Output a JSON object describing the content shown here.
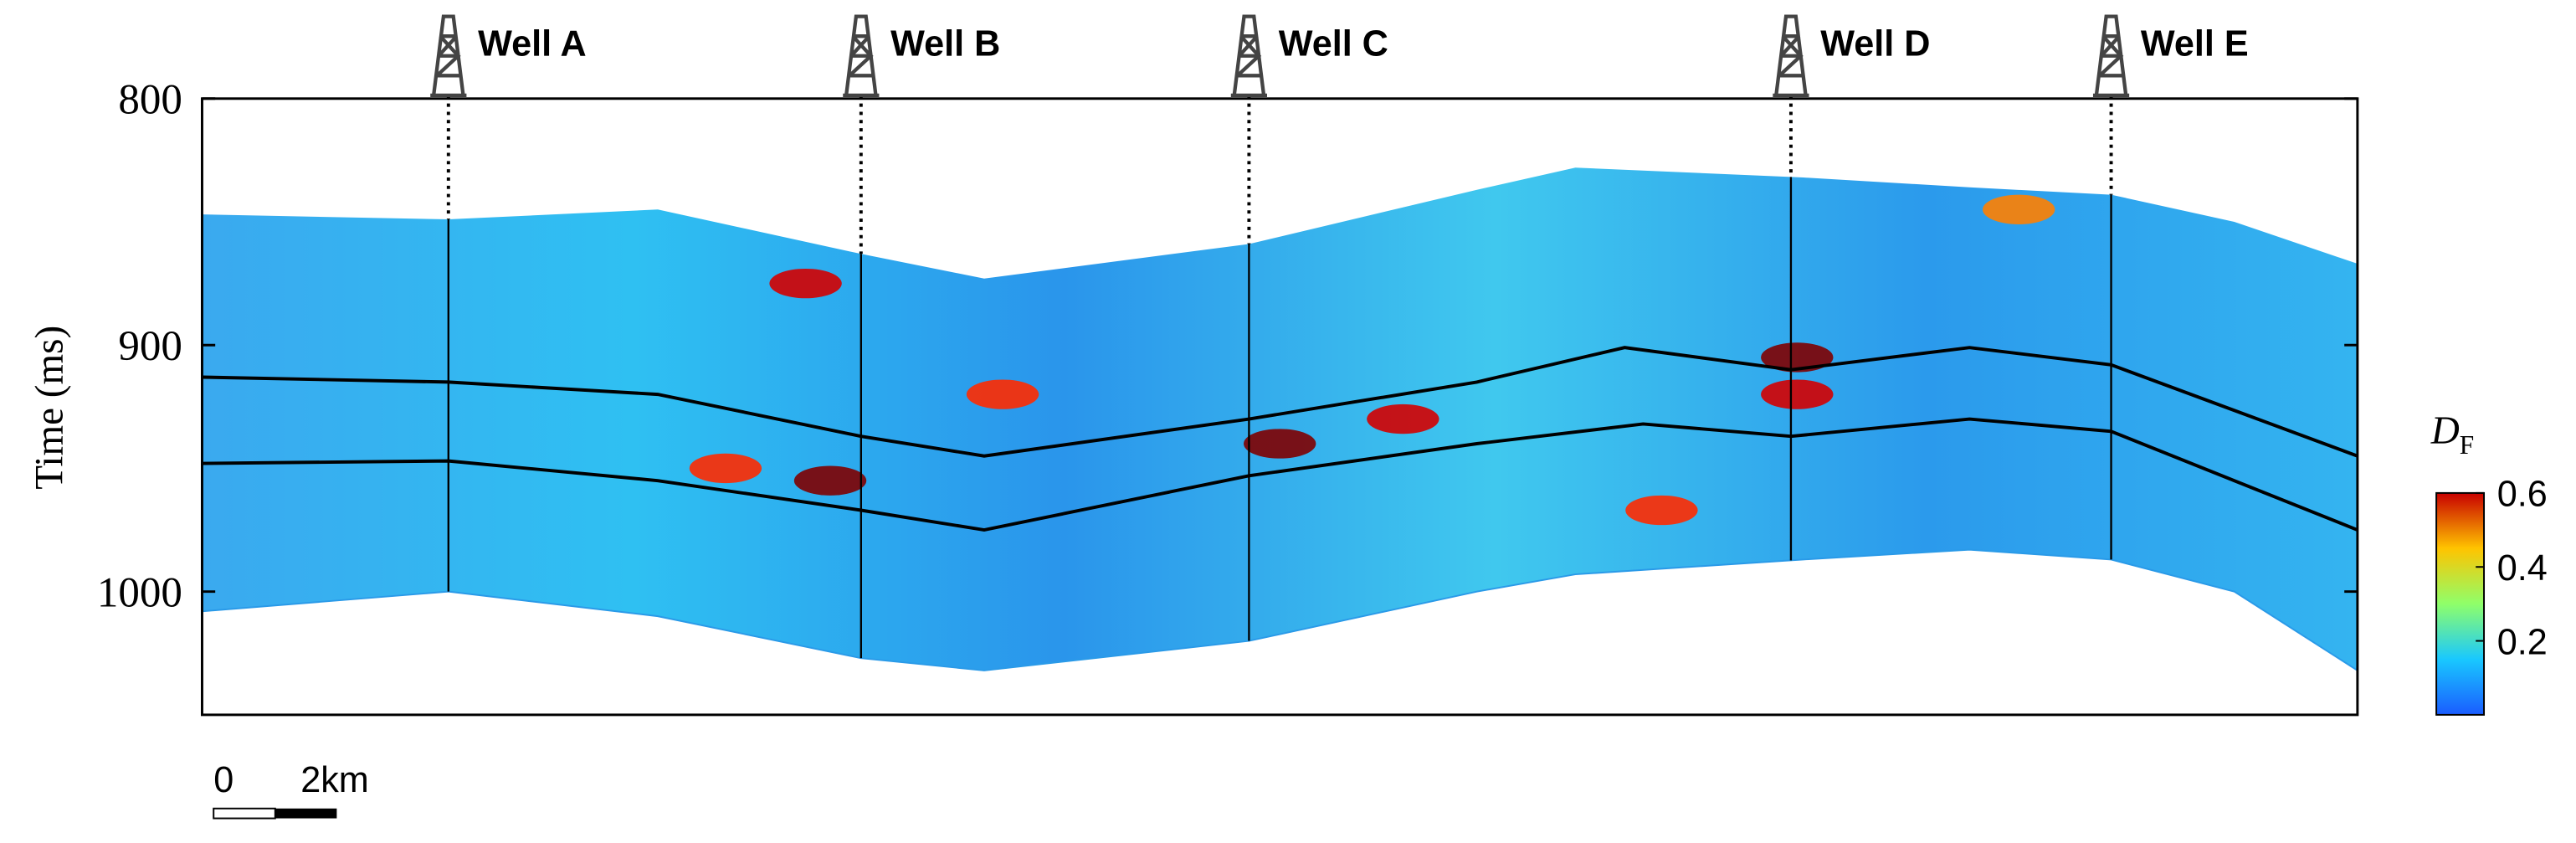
{
  "chart_data": {
    "type": "seismic-section",
    "ylabel": "Time (ms)",
    "ylim": [
      1050,
      800
    ],
    "yticks": [
      800,
      900,
      1000
    ],
    "xlim": [
      0,
      35
    ],
    "section_x": [
      0,
      4,
      7.4,
      10.7,
      12.7,
      17,
      20.7,
      22.3,
      26,
      28.7,
      31,
      33,
      35
    ],
    "section_top": [
      847,
      849,
      845,
      863,
      873,
      859,
      837,
      828,
      832,
      836,
      839,
      850,
      867
    ],
    "section_bottom": [
      1008,
      1000,
      1010,
      1027,
      1032,
      1020,
      1000,
      993,
      987,
      983,
      987,
      1000,
      1032
    ],
    "horizons": [
      {
        "x": [
          0,
          4,
          7.4,
          10.7,
          12.7,
          17,
          20.7,
          23.1,
          25.8,
          28.7,
          31,
          35
        ],
        "values": [
          913,
          915,
          920,
          937,
          945,
          930,
          915,
          901,
          910,
          901,
          908,
          945
        ]
      },
      {
        "x": [
          0,
          4,
          7.4,
          10.7,
          12.7,
          17,
          20.7,
          23.4,
          25.8,
          28.7,
          31,
          35
        ],
        "values": [
          948,
          947,
          955,
          967,
          975,
          953,
          940,
          932,
          937,
          930,
          935,
          975
        ]
      }
    ],
    "anomalies": {
      "x": [
        10.2,
        9.8,
        13,
        17.5,
        19.5,
        25.9,
        25.9,
        23.7,
        8.5,
        29.5
      ],
      "t": [
        955,
        875,
        920,
        940,
        930,
        905,
        920,
        967,
        950,
        845
      ],
      "values": [
        0.6,
        0.55,
        0.5,
        0.6,
        0.55,
        0.6,
        0.55,
        0.5,
        0.5,
        0.45
      ]
    },
    "wells": [
      {
        "name": "Well A",
        "x": 4
      },
      {
        "name": "Well B",
        "x": 10.7
      },
      {
        "name": "Well C",
        "x": 17
      },
      {
        "name": "Well D",
        "x": 25.8
      },
      {
        "name": "Well E",
        "x": 31
      }
    ],
    "colorbar": {
      "label": "D",
      "label_sub": "F",
      "clim": [
        0,
        0.6
      ],
      "ticks": [
        0.2,
        0.4,
        0.6
      ]
    },
    "scale_bar": {
      "labels": [
        "0",
        "2km"
      ],
      "length": 2
    }
  }
}
